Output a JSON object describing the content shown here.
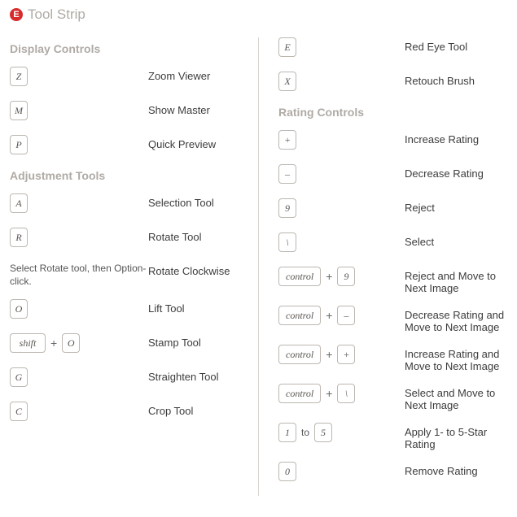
{
  "colors": {
    "badge_bg": "#d82c2c",
    "muted_text": "#b0aaa5",
    "body_text": "#3c3c3c",
    "key_border": "#bdb7b0",
    "divider": "#d9d4cf",
    "background": "#ffffff"
  },
  "typography": {
    "body_family": "Myriad Pro, Segoe UI, Helvetica Neue, Arial, sans-serif",
    "key_family": "Times New Roman, serif",
    "title_size_pt": 13,
    "section_size_pt": 11,
    "body_size_pt": 10,
    "key_style": "italic"
  },
  "header": {
    "badge": "E",
    "title": "Tool Strip"
  },
  "sections": {
    "display": "Display Controls",
    "adjust": "Adjustment Tools",
    "rating": "Rating Controls"
  },
  "left": {
    "display": [
      {
        "keys": [
          {
            "t": "key",
            "v": "Z"
          }
        ],
        "desc": "Zoom Viewer"
      },
      {
        "keys": [
          {
            "t": "key",
            "v": "M"
          }
        ],
        "desc": "Show Master"
      },
      {
        "keys": [
          {
            "t": "key",
            "v": "P"
          }
        ],
        "desc": "Quick Preview"
      }
    ],
    "adjust": [
      {
        "keys": [
          {
            "t": "key",
            "v": "A"
          }
        ],
        "desc": "Selection Tool"
      },
      {
        "keys": [
          {
            "t": "key",
            "v": "R"
          }
        ],
        "desc": "Rotate Tool"
      },
      {
        "note": "Select Rotate tool, then Option-click.",
        "desc": "Rotate Clockwise"
      },
      {
        "keys": [
          {
            "t": "key",
            "v": "O"
          }
        ],
        "desc": "Lift Tool"
      },
      {
        "keys": [
          {
            "t": "key",
            "v": "shift",
            "w": true
          },
          {
            "t": "plus"
          },
          {
            "t": "key",
            "v": "O"
          }
        ],
        "desc": "Stamp Tool"
      },
      {
        "keys": [
          {
            "t": "key",
            "v": "G"
          }
        ],
        "desc": "Straighten Tool"
      },
      {
        "keys": [
          {
            "t": "key",
            "v": "C"
          }
        ],
        "desc": "Crop Tool"
      }
    ]
  },
  "right": {
    "pre": [
      {
        "keys": [
          {
            "t": "key",
            "v": "E"
          }
        ],
        "desc": "Red Eye Tool"
      },
      {
        "keys": [
          {
            "t": "key",
            "v": "X"
          }
        ],
        "desc": "Retouch Brush"
      }
    ],
    "rating": [
      {
        "keys": [
          {
            "t": "key",
            "v": "+"
          }
        ],
        "desc": "Increase Rating"
      },
      {
        "keys": [
          {
            "t": "key",
            "v": "–"
          }
        ],
        "desc": "Decrease Rating"
      },
      {
        "keys": [
          {
            "t": "key",
            "v": "9"
          }
        ],
        "desc": "Reject"
      },
      {
        "keys": [
          {
            "t": "key",
            "v": "\\"
          }
        ],
        "desc": "Select"
      },
      {
        "keys": [
          {
            "t": "key",
            "v": "control",
            "w": true
          },
          {
            "t": "plus"
          },
          {
            "t": "key",
            "v": "9"
          }
        ],
        "desc": "Reject and Move to Next Image"
      },
      {
        "keys": [
          {
            "t": "key",
            "v": "control",
            "w": true
          },
          {
            "t": "plus"
          },
          {
            "t": "key",
            "v": "–"
          }
        ],
        "desc": "Decrease Rating and Move to Next Image"
      },
      {
        "keys": [
          {
            "t": "key",
            "v": "control",
            "w": true
          },
          {
            "t": "plus"
          },
          {
            "t": "key",
            "v": "+"
          }
        ],
        "desc": "Increase Rating and Move to Next Image"
      },
      {
        "keys": [
          {
            "t": "key",
            "v": "control",
            "w": true
          },
          {
            "t": "plus"
          },
          {
            "t": "key",
            "v": "\\"
          }
        ],
        "desc": "Select and Move to Next Image"
      },
      {
        "keys": [
          {
            "t": "key",
            "v": "1"
          },
          {
            "t": "to"
          },
          {
            "t": "key",
            "v": "5"
          }
        ],
        "desc": "Apply 1- to 5-Star Rating"
      },
      {
        "keys": [
          {
            "t": "key",
            "v": "0"
          }
        ],
        "desc": "Remove Rating"
      }
    ]
  },
  "joiners": {
    "plus": "+",
    "to": "to"
  }
}
